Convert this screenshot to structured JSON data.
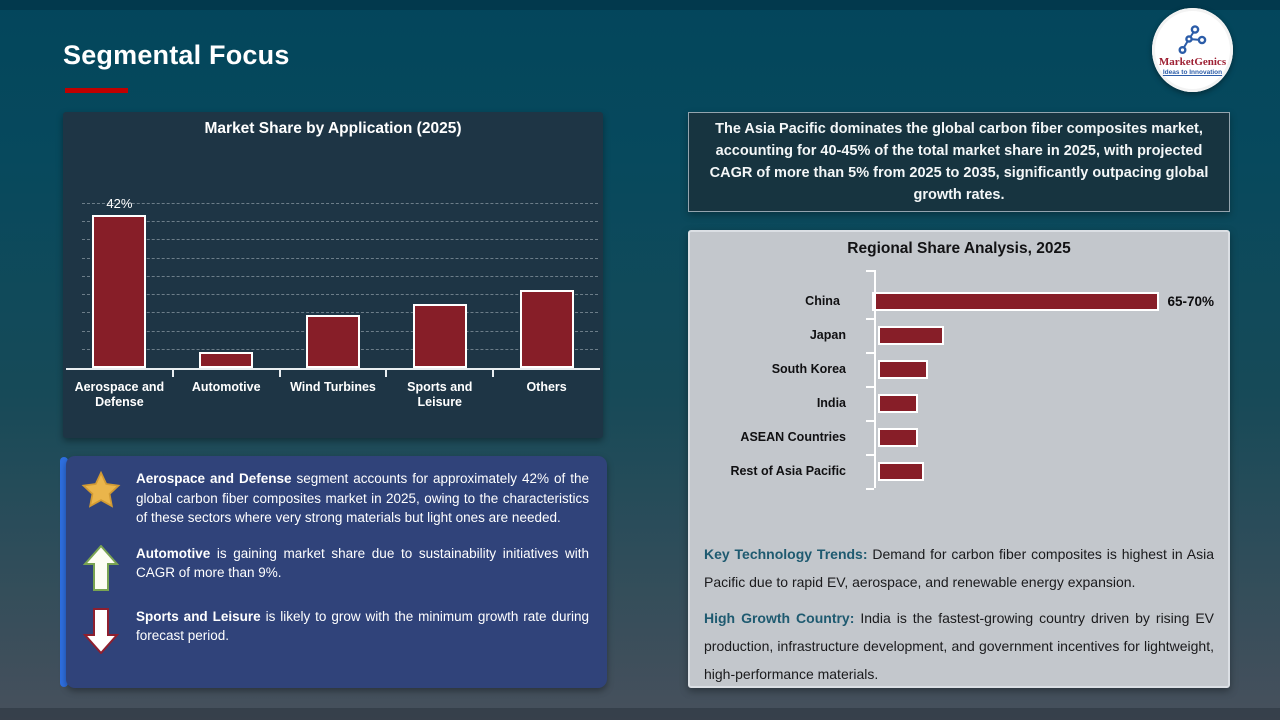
{
  "header": {
    "title": "Segmental Focus"
  },
  "logo": {
    "brand": "MarketGenics",
    "tagline": "Ideas to Innovation"
  },
  "asia_note": "The Asia Pacific dominates the global carbon fiber composites market, accounting for 40-45% of the total market share in 2025, with projected CAGR of more than 5% from 2025 to 2035, significantly outpacing global growth rates.",
  "chart_data": [
    {
      "type": "bar",
      "orientation": "vertical",
      "title": "Market Share by Application (2025)",
      "categories": [
        "Aerospace and Defense",
        "Automotive",
        "Wind Turbines",
        "Sports and Leisure",
        "Others"
      ],
      "values": [
        42,
        4.5,
        14.5,
        17.5,
        21.5
      ],
      "data_labels": [
        "42%",
        "",
        "",
        "",
        ""
      ],
      "xlabel": "",
      "ylabel": "",
      "ylim": [
        0,
        45
      ],
      "gridline_step": 5,
      "grid": "dashed-horizontal",
      "legend": "none",
      "bar_color": "#871e28",
      "bar_border_color": "#ffffff"
    },
    {
      "type": "bar",
      "orientation": "horizontal",
      "title": "Regional Share Analysis, 2025",
      "categories": [
        "China",
        "Japan",
        "South Korea",
        "India",
        "ASEAN Countries",
        "Rest of Asia Pacific"
      ],
      "values": [
        67.5,
        15.5,
        11.7,
        9.4,
        9.4,
        10.8
      ],
      "data_labels": [
        "65-70%",
        "",
        "",
        "",
        "",
        ""
      ],
      "xlabel": "",
      "ylabel": "",
      "xlim": [
        0,
        100
      ],
      "grid": "off",
      "legend": "none",
      "bar_color": "#871e28",
      "bar_border_color": "#ffffff"
    }
  ],
  "insights": [
    {
      "icon": "star-icon",
      "lead": "Aerospace and Defense",
      "text": " segment accounts for approximately 42% of the global carbon fiber composites market in 2025, owing to the characteristics of these sectors where very strong materials but light ones are needed."
    },
    {
      "icon": "arrow-up-icon",
      "lead": "Automotive",
      "text": " is gaining market share due to sustainability initiatives with CAGR of more than 9%."
    },
    {
      "icon": "arrow-down-icon",
      "lead": "Sports and Leisure",
      "text": " is likely to grow with the minimum growth rate during forecast period."
    }
  ],
  "trends": [
    {
      "lead": "Key Technology Trends:",
      "text": " Demand for carbon fiber composites is highest in Asia Pacific due to rapid EV, aerospace, and renewable energy expansion."
    },
    {
      "lead": "High Growth Country:",
      "text": " India is the fastest-growing country driven by rising EV production, infrastructure development, and government incentives for lightweight, high-performance materials."
    }
  ],
  "palette": {
    "background_top": "#03465c",
    "background_bottom": "#47505c",
    "accent_red": "#c00000",
    "bar_red": "#871e28",
    "chart_panel_navy": "#1e3545",
    "note_panel_navy": "#173440",
    "regional_panel_gray": "#c3c7cc",
    "insight_box_blue": "#30437a",
    "insight_stripe_blue": "#2e6fe0",
    "trend_lead_teal": "#1e5a70",
    "star_gold": "#eab54b",
    "arrow_up_green": "#79a352",
    "arrow_down_red": "#8e1f2f",
    "logo_brand_red": "#9e2235",
    "logo_icon_blue": "#2b5ca8"
  }
}
